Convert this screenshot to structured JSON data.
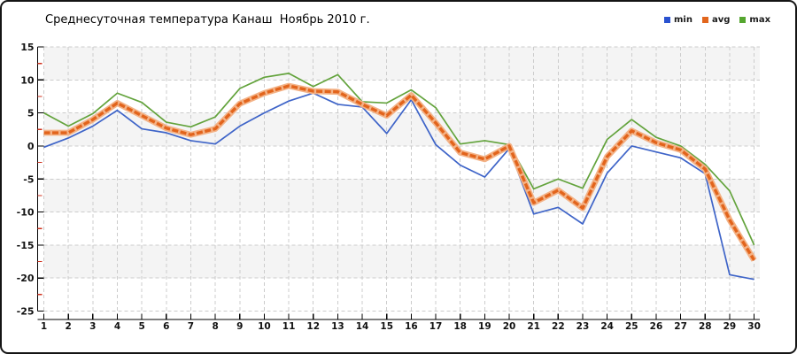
{
  "title": "Среднесуточная температура Канаш  Ноябрь 2010 г.",
  "legend": {
    "items": [
      {
        "label": "min",
        "color": "#2a52d0"
      },
      {
        "label": "avg",
        "color": "#e2661d"
      },
      {
        "label": "max",
        "color": "#55a62f"
      }
    ]
  },
  "chart_data": {
    "type": "line",
    "title": "Среднесуточная температура Канаш  Ноябрь 2010 г.",
    "xlabel": "",
    "ylabel": "",
    "x": [
      1,
      2,
      3,
      4,
      5,
      6,
      7,
      8,
      9,
      10,
      11,
      12,
      13,
      14,
      15,
      16,
      17,
      18,
      19,
      20,
      21,
      22,
      23,
      24,
      25,
      26,
      27,
      28,
      29,
      30
    ],
    "series": [
      {
        "name": "min",
        "color": "#3e64c8",
        "width": 1.7,
        "values": [
          -0.2,
          1.2,
          3.0,
          5.4,
          2.6,
          2.0,
          0.8,
          0.3,
          3.0,
          5.0,
          6.8,
          8.0,
          6.3,
          5.9,
          1.9,
          7.0,
          0.2,
          -2.9,
          -4.7,
          -0.4,
          -10.3,
          -9.3,
          -11.8,
          -4.1,
          0.0,
          -0.9,
          -1.8,
          -4.2,
          -19.5,
          -20.2
        ]
      },
      {
        "name": "avg",
        "color": "#e2641c",
        "halo": "#f3b286",
        "width": 3.4,
        "values": [
          2.0,
          2.0,
          4.0,
          6.5,
          4.6,
          2.7,
          1.7,
          2.6,
          6.4,
          8.0,
          9.1,
          8.3,
          8.2,
          6.3,
          4.6,
          7.7,
          3.5,
          -1.0,
          -2.0,
          0.0,
          -8.6,
          -6.7,
          -9.4,
          -1.6,
          2.3,
          0.5,
          -0.6,
          -3.5,
          -11.2,
          -17.3
        ]
      },
      {
        "name": "max",
        "color": "#63a33c",
        "width": 1.7,
        "values": [
          5.0,
          3.0,
          4.9,
          8.0,
          6.6,
          3.6,
          2.9,
          4.4,
          8.7,
          10.4,
          11.0,
          9.0,
          10.8,
          6.7,
          6.5,
          8.5,
          5.8,
          0.3,
          0.8,
          0.2,
          -6.5,
          -5.0,
          -6.4,
          1.0,
          4.0,
          1.3,
          0.0,
          -2.8,
          -6.8,
          -15.0
        ]
      }
    ],
    "ylim": [
      -25,
      15
    ],
    "yticks": [
      15,
      10,
      5,
      0,
      -5,
      -10,
      -15,
      -20,
      -25
    ],
    "minor_ytick_step": 2.5,
    "grid": "dashed",
    "grid_color": "#cccccc",
    "band_color": "#f4f4f4",
    "axis_color": "#000000",
    "minor_ytick_color": "#d0321e",
    "legend_position": "top-right"
  }
}
